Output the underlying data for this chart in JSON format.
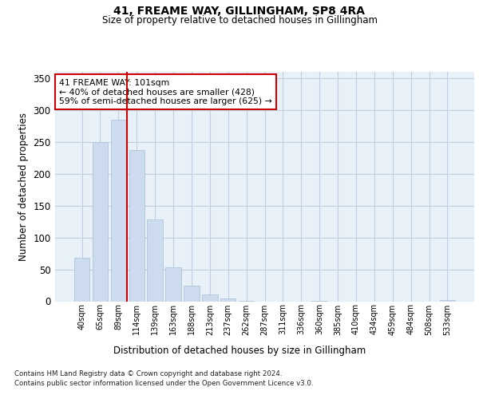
{
  "title": "41, FREAME WAY, GILLINGHAM, SP8 4RA",
  "subtitle": "Size of property relative to detached houses in Gillingham",
  "xlabel": "Distribution of detached houses by size in Gillingham",
  "ylabel": "Number of detached properties",
  "bar_color": "#ccdcee",
  "bar_edge_color": "#a8bfd4",
  "grid_color": "#c0d0e0",
  "background_color": "#e8f0f8",
  "red_line_x": 2.45,
  "red_line_color": "#cc0000",
  "annotation_text": "41 FREAME WAY: 101sqm\n← 40% of detached houses are smaller (428)\n59% of semi-detached houses are larger (625) →",
  "annotation_box_color": "#ffffff",
  "annotation_box_edge": "#cc0000",
  "categories": [
    "40sqm",
    "65sqm",
    "89sqm",
    "114sqm",
    "139sqm",
    "163sqm",
    "188sqm",
    "213sqm",
    "237sqm",
    "262sqm",
    "287sqm",
    "311sqm",
    "336sqm",
    "360sqm",
    "385sqm",
    "410sqm",
    "434sqm",
    "459sqm",
    "484sqm",
    "508sqm",
    "533sqm"
  ],
  "values": [
    68,
    250,
    285,
    237,
    128,
    53,
    25,
    11,
    4,
    1,
    0,
    0,
    0,
    1,
    0,
    0,
    0,
    0,
    0,
    0,
    2
  ],
  "ylim": [
    0,
    360
  ],
  "yticks": [
    0,
    50,
    100,
    150,
    200,
    250,
    300,
    350
  ],
  "footer_line1": "Contains HM Land Registry data © Crown copyright and database right 2024.",
  "footer_line2": "Contains public sector information licensed under the Open Government Licence v3.0."
}
